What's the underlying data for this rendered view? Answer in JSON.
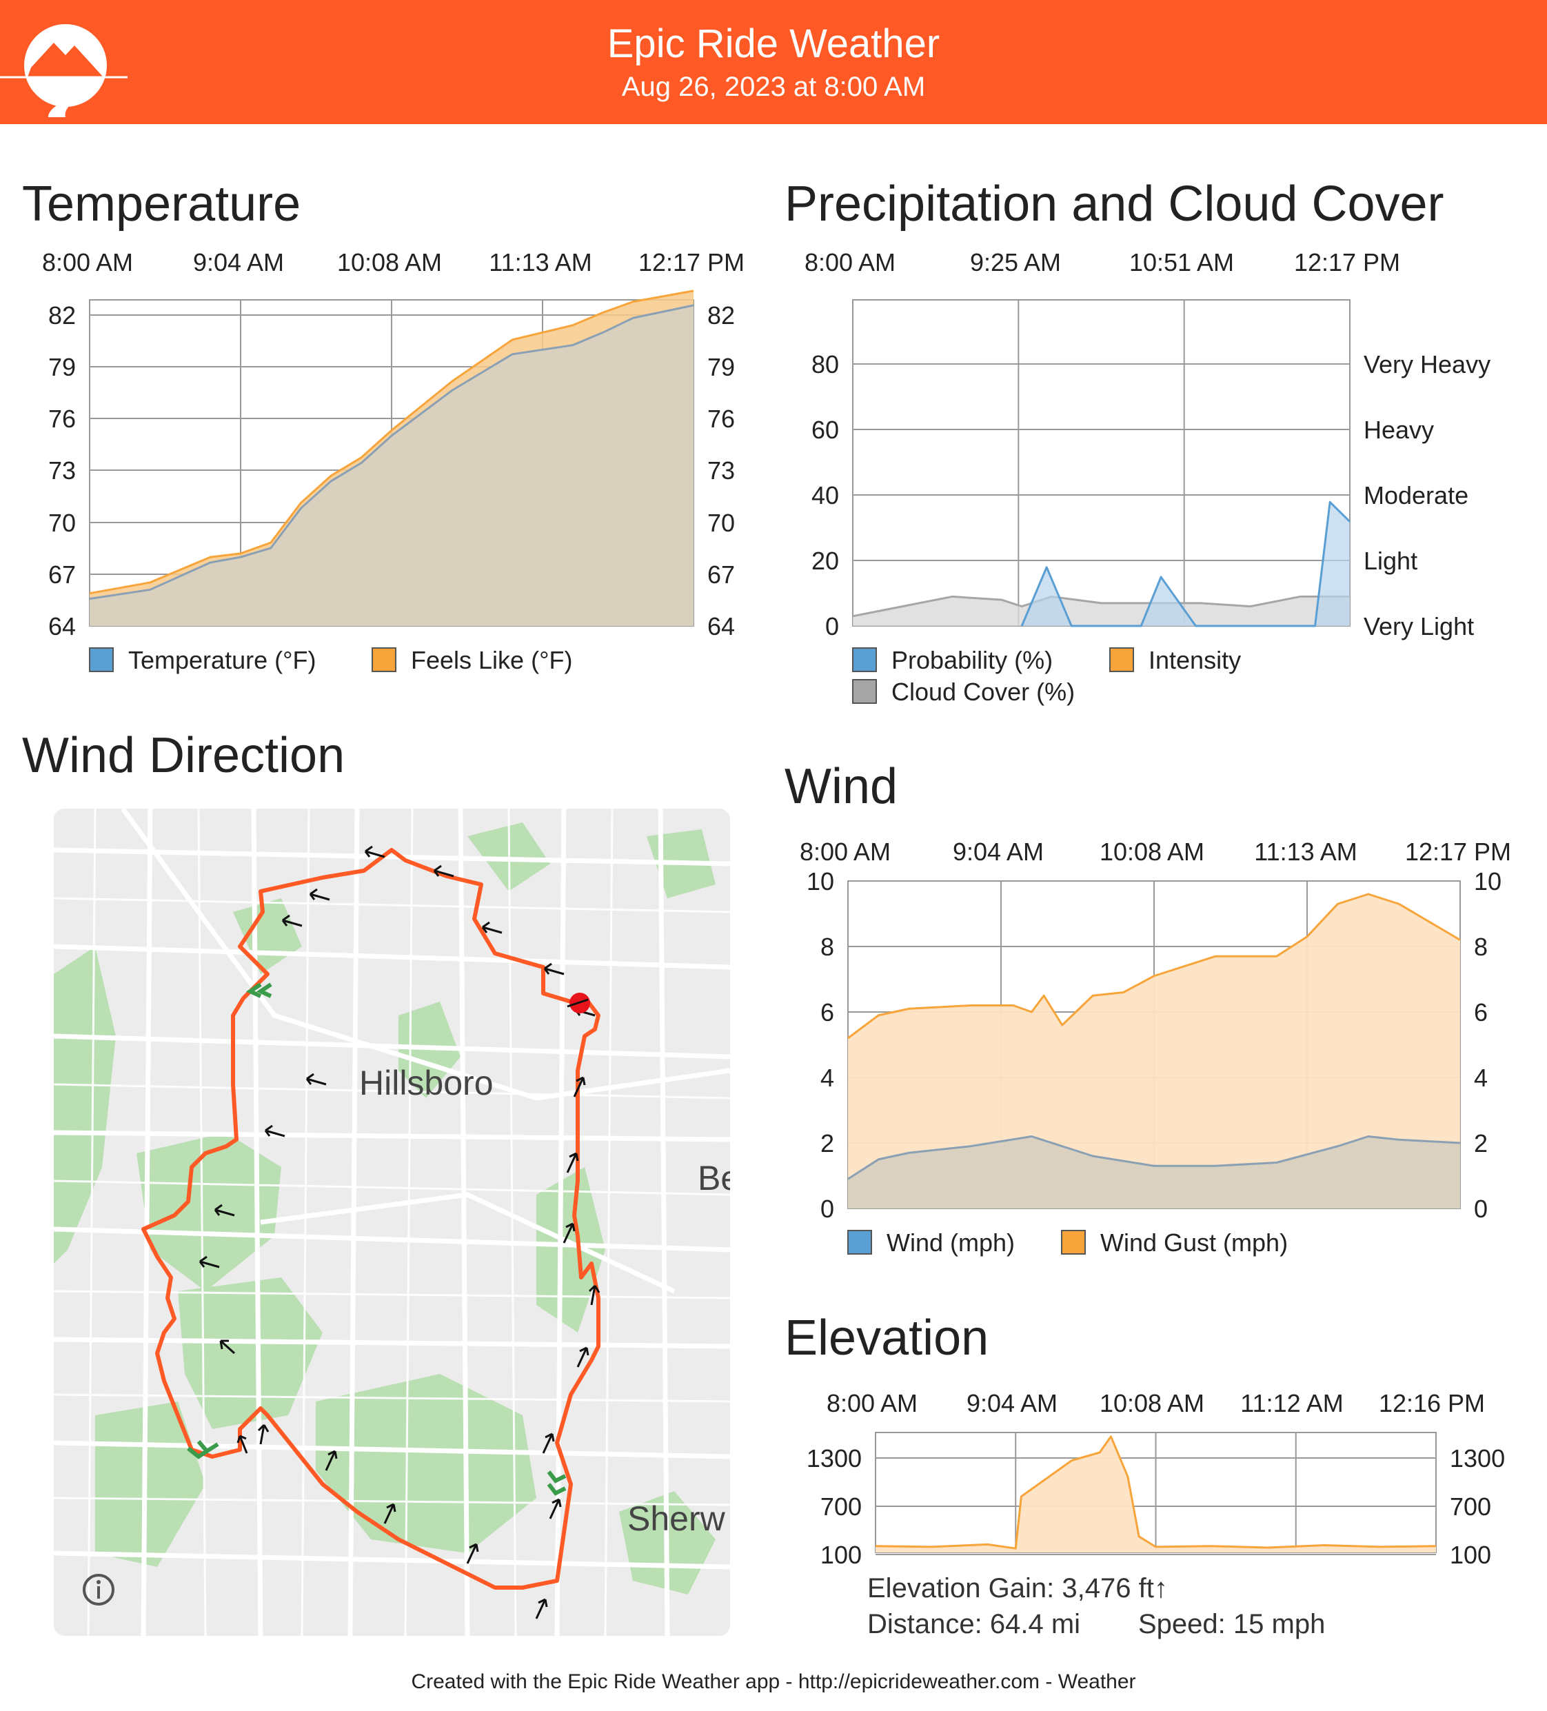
{
  "header": {
    "title": "Epic Ride Weather",
    "subtitle": "Aug 26, 2023 at 8:00 AM",
    "logo_icon": "mountain-road-logo-icon",
    "background": "#ff5a25"
  },
  "temperature": {
    "title": "Temperature",
    "time_labels": [
      "8:00 AM",
      "9:04 AM",
      "10:08 AM",
      "11:13 AM",
      "12:17 PM"
    ],
    "y_ticks": [
      "82",
      "79",
      "76",
      "73",
      "70",
      "67",
      "64"
    ],
    "legend": [
      {
        "label": "Temperature (°F)",
        "color": "#5a9fd4"
      },
      {
        "label": "Feels Like (°F)",
        "color": "#f7a43a"
      }
    ]
  },
  "precip": {
    "title": "Precipitation and Cloud Cover",
    "time_labels": [
      "8:00 AM",
      "9:25 AM",
      "10:51 AM",
      "12:17 PM"
    ],
    "y_ticks": [
      "80",
      "60",
      "40",
      "20",
      "0"
    ],
    "intensity_labels": [
      "Very Heavy",
      "Heavy",
      "Moderate",
      "Light",
      "Very Light"
    ],
    "legend": [
      {
        "label": "Probability (%)",
        "color": "#5a9fd4"
      },
      {
        "label": "Intensity",
        "color": "#f7a43a"
      },
      {
        "label": "Cloud Cover (%)",
        "color": "#a6a6a6"
      }
    ]
  },
  "wind_direction": {
    "title": "Wind Direction",
    "map_labels": {
      "city": "Hillsboro",
      "east": "Be",
      "south": "Sherw"
    },
    "info_icon": "info-icon"
  },
  "wind": {
    "title": "Wind",
    "time_labels": [
      "8:00 AM",
      "9:04 AM",
      "10:08 AM",
      "11:13 AM",
      "12:17 PM"
    ],
    "y_ticks": [
      "10",
      "8",
      "6",
      "4",
      "2",
      "0"
    ],
    "legend": [
      {
        "label": "Wind (mph)",
        "color": "#5a9fd4"
      },
      {
        "label": "Wind Gust (mph)",
        "color": "#f7a43a"
      }
    ]
  },
  "elevation": {
    "title": "Elevation",
    "time_labels": [
      "8:00 AM",
      "9:04 AM",
      "10:08 AM",
      "11:12 AM",
      "12:16 PM"
    ],
    "y_ticks": [
      "1300",
      "700",
      "100"
    ],
    "gain": "Elevation Gain: 3,476 ft↑",
    "distance": "Distance: 64.4 mi",
    "speed": "Speed: 15 mph"
  },
  "footer": {
    "text": "Created with the Epic Ride Weather app - http://epicrideweather.com -  Weather"
  },
  "chart_data": [
    {
      "type": "area",
      "title": "Temperature",
      "x": [
        "8:00 AM",
        "9:04 AM",
        "10:08 AM",
        "11:13 AM",
        "12:17 PM"
      ],
      "ylim": [
        64,
        82
      ],
      "series": [
        {
          "name": "Temperature (°F)",
          "x": [
            0,
            0.1,
            0.2,
            0.25,
            0.3,
            0.35,
            0.4,
            0.45,
            0.5,
            0.6,
            0.7,
            0.8,
            0.85,
            0.9,
            1.0
          ],
          "values": [
            65.5,
            66.0,
            67.5,
            67.8,
            68.3,
            70.5,
            72.0,
            73.0,
            74.5,
            77.0,
            79.0,
            79.5,
            80.2,
            81.0,
            81.7
          ]
        },
        {
          "name": "Feels Like (°F)",
          "x": [
            0,
            0.1,
            0.2,
            0.25,
            0.3,
            0.35,
            0.4,
            0.45,
            0.5,
            0.6,
            0.7,
            0.8,
            0.85,
            0.9,
            1.0
          ],
          "values": [
            65.8,
            66.4,
            67.8,
            68.0,
            68.6,
            70.8,
            72.3,
            73.3,
            74.8,
            77.5,
            79.8,
            80.6,
            81.3,
            81.9,
            82.5
          ]
        }
      ],
      "legend_position": "bottom",
      "grid": true
    },
    {
      "type": "area",
      "title": "Precipitation and Cloud Cover",
      "x": [
        "8:00 AM",
        "9:25 AM",
        "10:51 AM",
        "12:17 PM"
      ],
      "ylim": [
        0,
        100
      ],
      "series": [
        {
          "name": "Probability (%)",
          "x": [
            0.34,
            0.39,
            0.44,
            0.58,
            0.62,
            0.69,
            0.93,
            0.96,
            1.0
          ],
          "values": [
            0,
            18,
            0,
            0,
            15,
            0,
            0,
            38,
            32
          ]
        },
        {
          "name": "Cloud Cover (%)",
          "x": [
            0,
            0.1,
            0.2,
            0.3,
            0.34,
            0.4,
            0.5,
            0.6,
            0.7,
            0.8,
            0.9,
            1.0
          ],
          "values": [
            3,
            6,
            9,
            8,
            6,
            9,
            7,
            7,
            7,
            6,
            9,
            9
          ]
        }
      ],
      "secondary_axis_labels": [
        "Very Light",
        "Light",
        "Moderate",
        "Heavy",
        "Very Heavy"
      ],
      "legend_position": "bottom",
      "grid": true
    },
    {
      "type": "area",
      "title": "Wind",
      "x": [
        "8:00 AM",
        "9:04 AM",
        "10:08 AM",
        "11:13 AM",
        "12:17 PM"
      ],
      "ylim": [
        0,
        10
      ],
      "series": [
        {
          "name": "Wind Gust (mph)",
          "x": [
            0,
            0.05,
            0.1,
            0.2,
            0.27,
            0.3,
            0.32,
            0.35,
            0.4,
            0.45,
            0.5,
            0.6,
            0.7,
            0.75,
            0.8,
            0.85,
            0.9,
            1.0
          ],
          "values": [
            5.2,
            5.9,
            6.1,
            6.2,
            6.2,
            6.0,
            6.5,
            5.6,
            6.5,
            6.6,
            7.1,
            7.7,
            7.7,
            8.3,
            9.3,
            9.6,
            9.3,
            8.2
          ]
        },
        {
          "name": "Wind (mph)",
          "x": [
            0,
            0.05,
            0.1,
            0.2,
            0.3,
            0.4,
            0.5,
            0.6,
            0.7,
            0.8,
            0.85,
            0.9,
            1.0
          ],
          "values": [
            0.9,
            1.5,
            1.7,
            1.9,
            2.2,
            1.6,
            1.3,
            1.3,
            1.4,
            1.9,
            2.2,
            2.1,
            2.0
          ]
        }
      ],
      "legend_position": "bottom",
      "grid": true
    },
    {
      "type": "area",
      "title": "Elevation",
      "x": [
        "8:00 AM",
        "9:04 AM",
        "10:08 AM",
        "11:12 AM",
        "12:16 PM"
      ],
      "ylim": [
        100,
        1600
      ],
      "series": [
        {
          "name": "Elevation",
          "x": [
            0,
            0.1,
            0.2,
            0.25,
            0.26,
            0.3,
            0.35,
            0.4,
            0.42,
            0.45,
            0.47,
            0.5,
            0.6,
            0.7,
            0.8,
            0.9,
            1.0
          ],
          "values": [
            180,
            170,
            200,
            150,
            800,
            1000,
            1250,
            1350,
            1550,
            1050,
            300,
            170,
            180,
            160,
            190,
            170,
            180
          ]
        }
      ],
      "legend_position": "none",
      "grid": true
    }
  ]
}
